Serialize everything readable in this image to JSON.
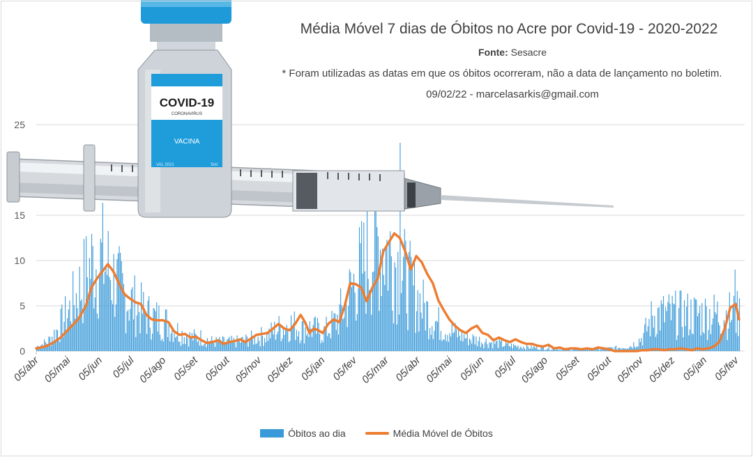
{
  "chart_data": {
    "type": "bar",
    "title": "Média Móvel 7 dias de Óbitos no Acre por Covid-19 - 2020-2022",
    "source_label": "Fonte:",
    "source_value": "Sesacre",
    "note": "* Foram utilizadas as datas em que os óbitos ocorreram, não a data de lançamento no boletim.",
    "credit": "09/02/22 - marcelasarkis@gmail.com",
    "ylim": [
      0,
      25
    ],
    "y_ticks": [
      0,
      5,
      10,
      15,
      25
    ],
    "x_tick_labels": [
      "05/abr",
      "05/mai",
      "05/jun",
      "05/jul",
      "05/ago",
      "05/set",
      "05/out",
      "05/nov",
      "05/dez",
      "05/jan",
      "05/fev",
      "05/mar",
      "05/abr",
      "05/mai",
      "05/jun",
      "05/jul",
      "05/ago",
      "05/set",
      "05/out",
      "05/nov",
      "05/dez",
      "05/jan",
      "05/fev"
    ],
    "grid": true,
    "legend_position": "bottom",
    "series": [
      {
        "name": "Óbitos ao dia",
        "kind": "bar",
        "color": "#3a9ad9",
        "daily_profile_keypoints": [
          [
            0,
            0.5
          ],
          [
            10,
            1
          ],
          [
            20,
            2.5
          ],
          [
            30,
            4.5
          ],
          [
            40,
            7
          ],
          [
            50,
            9.5
          ],
          [
            60,
            10
          ],
          [
            70,
            8
          ],
          [
            80,
            6
          ],
          [
            90,
            5
          ],
          [
            100,
            4
          ],
          [
            110,
            3.5
          ],
          [
            120,
            3
          ],
          [
            130,
            2
          ],
          [
            140,
            1.5
          ],
          [
            150,
            1.5
          ],
          [
            160,
            1
          ],
          [
            170,
            1
          ],
          [
            180,
            1
          ],
          [
            190,
            1.2
          ],
          [
            200,
            1.5
          ],
          [
            210,
            1.8
          ],
          [
            220,
            2.5
          ],
          [
            230,
            3
          ],
          [
            240,
            2.5
          ],
          [
            250,
            2.5
          ],
          [
            260,
            2
          ],
          [
            270,
            3
          ],
          [
            280,
            5
          ],
          [
            290,
            8
          ],
          [
            300,
            10
          ],
          [
            310,
            12
          ],
          [
            320,
            11
          ],
          [
            330,
            9
          ],
          [
            340,
            7
          ],
          [
            350,
            5
          ],
          [
            360,
            3.5
          ],
          [
            370,
            2.5
          ],
          [
            380,
            2
          ],
          [
            390,
            1.5
          ],
          [
            400,
            1.2
          ],
          [
            410,
            1
          ],
          [
            420,
            0.8
          ],
          [
            430,
            0.6
          ],
          [
            440,
            0.5
          ],
          [
            450,
            0.4
          ],
          [
            460,
            0.4
          ],
          [
            470,
            0.3
          ],
          [
            480,
            0.2
          ],
          [
            490,
            0.2
          ],
          [
            500,
            0.2
          ],
          [
            510,
            0.2
          ],
          [
            520,
            0.3
          ],
          [
            530,
            0.4
          ],
          [
            540,
            0.6
          ],
          [
            550,
            1.5
          ],
          [
            560,
            4
          ],
          [
            565,
            4
          ]
        ]
      },
      {
        "name": "Média Móvel de Óbitos",
        "kind": "line",
        "color": "#ed7d31",
        "points": [
          [
            0,
            0.3
          ],
          [
            8,
            0.5
          ],
          [
            15,
            0.9
          ],
          [
            22,
            1.5
          ],
          [
            30,
            2.5
          ],
          [
            38,
            3.5
          ],
          [
            45,
            5
          ],
          [
            50,
            7
          ],
          [
            55,
            8
          ],
          [
            60,
            8.8
          ],
          [
            65,
            9.6
          ],
          [
            70,
            8.8
          ],
          [
            75,
            7.5
          ],
          [
            80,
            6.3
          ],
          [
            85,
            5.8
          ],
          [
            90,
            5.4
          ],
          [
            95,
            5.2
          ],
          [
            100,
            4
          ],
          [
            105,
            3.5
          ],
          [
            110,
            3.4
          ],
          [
            115,
            3.4
          ],
          [
            120,
            3.2
          ],
          [
            125,
            2.2
          ],
          [
            130,
            1.8
          ],
          [
            135,
            1.9
          ],
          [
            140,
            1.5
          ],
          [
            145,
            1.6
          ],
          [
            150,
            1.2
          ],
          [
            155,
            0.9
          ],
          [
            160,
            1.0
          ],
          [
            165,
            1.2
          ],
          [
            170,
            0.8
          ],
          [
            175,
            1.0
          ],
          [
            180,
            1.1
          ],
          [
            185,
            1.3
          ],
          [
            190,
            1.0
          ],
          [
            195,
            1.4
          ],
          [
            200,
            1.8
          ],
          [
            205,
            1.9
          ],
          [
            210,
            2.0
          ],
          [
            215,
            2.5
          ],
          [
            220,
            3.0
          ],
          [
            225,
            2.5
          ],
          [
            230,
            2.3
          ],
          [
            235,
            3.0
          ],
          [
            240,
            4.0
          ],
          [
            244,
            3.2
          ],
          [
            248,
            2.0
          ],
          [
            252,
            2.5
          ],
          [
            256,
            2.3
          ],
          [
            260,
            2.0
          ],
          [
            265,
            3.0
          ],
          [
            270,
            3.5
          ],
          [
            275,
            3.2
          ],
          [
            280,
            5.0
          ],
          [
            285,
            7.5
          ],
          [
            290,
            7.4
          ],
          [
            295,
            7.0
          ],
          [
            300,
            5.5
          ],
          [
            305,
            7.0
          ],
          [
            310,
            8.0
          ],
          [
            315,
            11
          ],
          [
            320,
            12
          ],
          [
            325,
            13
          ],
          [
            330,
            12.5
          ],
          [
            335,
            11
          ],
          [
            340,
            9
          ],
          [
            345,
            10.5
          ],
          [
            350,
            9.8
          ],
          [
            355,
            8.5
          ],
          [
            360,
            7.5
          ],
          [
            365,
            5.6
          ],
          [
            370,
            4.5
          ],
          [
            375,
            3.5
          ],
          [
            380,
            2.8
          ],
          [
            385,
            2.3
          ],
          [
            390,
            2.0
          ],
          [
            395,
            2.5
          ],
          [
            400,
            2.8
          ],
          [
            405,
            2.0
          ],
          [
            410,
            1.8
          ],
          [
            415,
            1.2
          ],
          [
            420,
            1.5
          ],
          [
            425,
            1.2
          ],
          [
            430,
            1.0
          ],
          [
            435,
            1.3
          ],
          [
            440,
            1.0
          ],
          [
            445,
            0.8
          ],
          [
            450,
            0.8
          ],
          [
            455,
            0.6
          ],
          [
            460,
            0.5
          ],
          [
            465,
            0.7
          ],
          [
            470,
            0.3
          ],
          [
            475,
            0.4
          ],
          [
            480,
            0.2
          ],
          [
            485,
            0.3
          ],
          [
            490,
            0.3
          ],
          [
            495,
            0.2
          ],
          [
            500,
            0.3
          ],
          [
            505,
            0.2
          ],
          [
            510,
            0.4
          ],
          [
            515,
            0.3
          ],
          [
            520,
            0.2
          ],
          [
            525,
            0.0
          ],
          [
            530,
            0.0
          ],
          [
            535,
            0.0
          ],
          [
            540,
            0.0
          ],
          [
            545,
            0.0
          ],
          [
            550,
            0.1
          ],
          [
            555,
            0.1
          ],
          [
            560,
            0.2
          ],
          [
            565,
            0.2
          ],
          [
            570,
            0.1
          ],
          [
            575,
            0.2
          ],
          [
            580,
            0.2
          ],
          [
            585,
            0.3
          ],
          [
            590,
            0.2
          ],
          [
            595,
            0.1
          ],
          [
            600,
            0.3
          ],
          [
            605,
            0.2
          ],
          [
            610,
            0.3
          ],
          [
            615,
            0.5
          ],
          [
            620,
            1.0
          ],
          [
            625,
            2.5
          ],
          [
            630,
            4.8
          ],
          [
            635,
            5.2
          ],
          [
            638,
            3.5
          ]
        ]
      }
    ]
  },
  "legend": {
    "bar_label": "Óbitos ao dia",
    "line_label": "Média Móvel de Óbitos"
  },
  "illustration": {
    "vial_label": "COVID-19",
    "vial_sublabel": "CORONAVIRUS",
    "vial_name": "VACINA",
    "vial_small_left": "VAL 2021",
    "vial_small_right": "5ml"
  }
}
